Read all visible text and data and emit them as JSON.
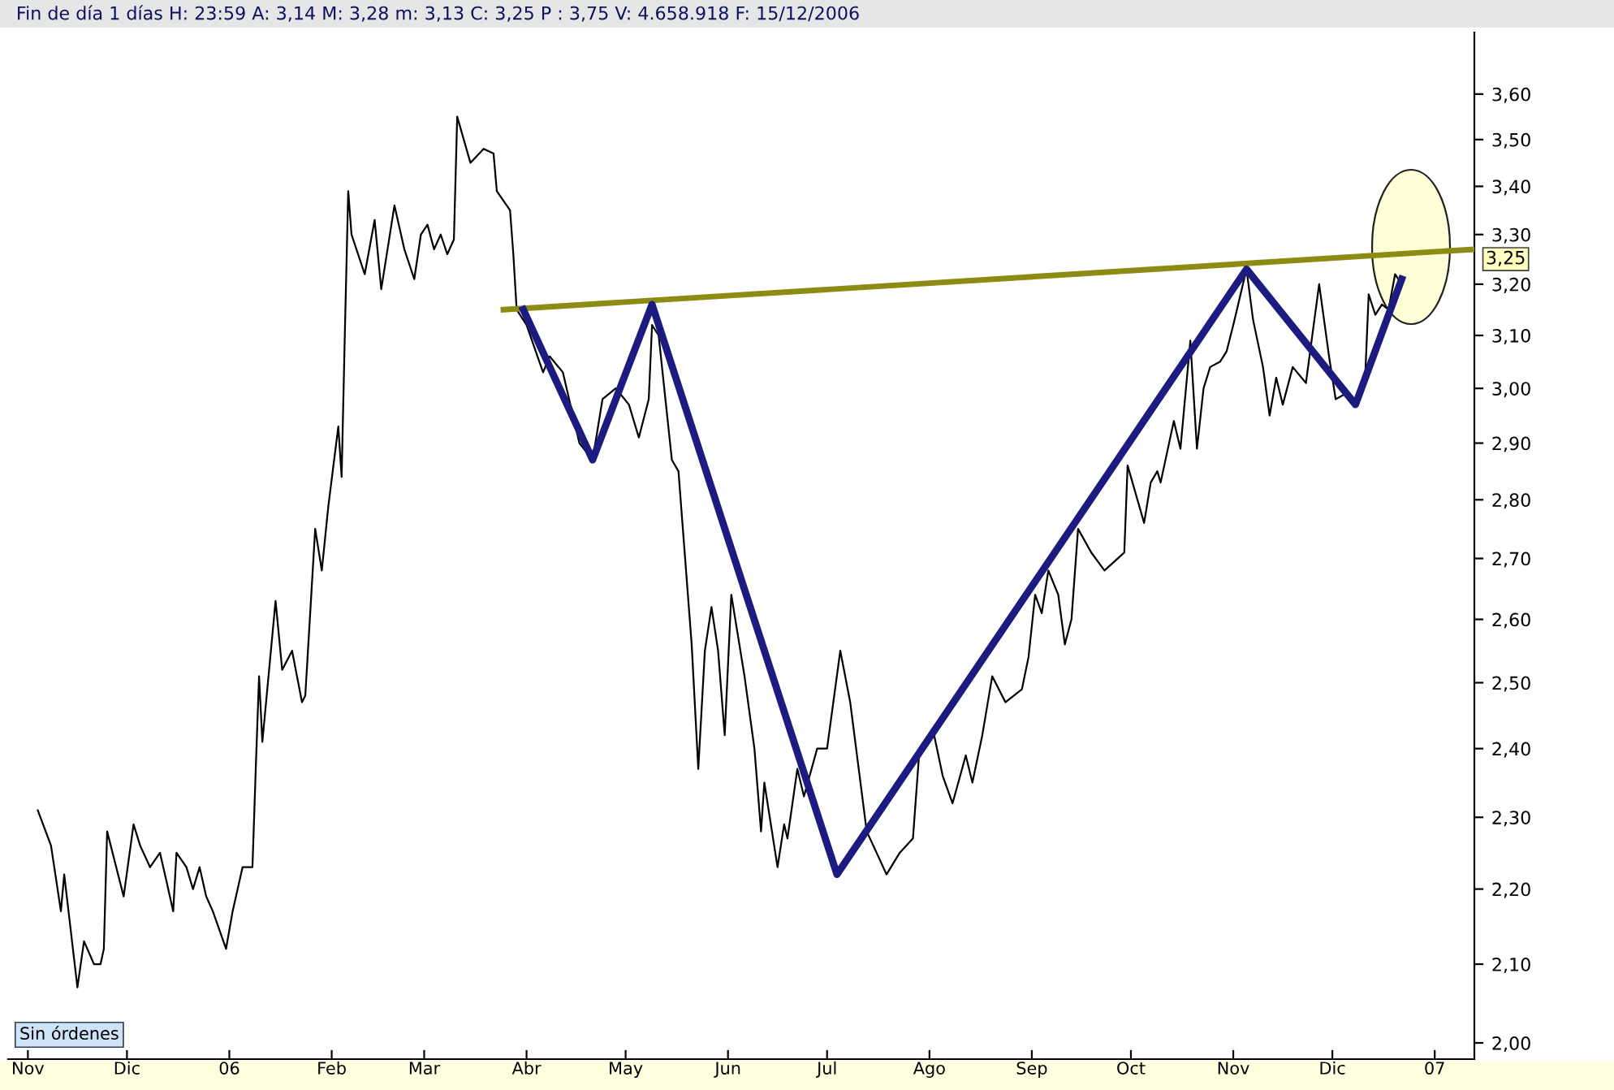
{
  "chart_data": {
    "type": "line",
    "title": "Fin de día 1 días H: 23:59 A: 3,14 M: 3,28 m: 3,13 C: 3,25 P : 3,75 V: 4.658.918 F: 15/12/2006",
    "annotations": [
      "Sin órdenes",
      {
        "text": "3,25",
        "x": "2007-01-13",
        "y": 3.25
      }
    ],
    "series": [
      {
        "color": "#000000",
        "x": [
          "2005-11-04",
          "2005-11-08",
          "2005-11-11",
          "2005-11-12",
          "2005-11-16",
          "2005-11-18",
          "2005-11-21",
          "2005-11-23",
          "2005-11-24",
          "2005-11-25",
          "2005-11-30",
          "2005-12-03",
          "2005-12-05",
          "2005-12-08",
          "2005-12-11",
          "2005-12-13",
          "2005-12-15",
          "2005-12-16",
          "2005-12-19",
          "2005-12-21",
          "2005-12-23",
          "2005-12-25",
          "2005-12-27",
          "2005-12-31",
          "2006-01-02",
          "2006-01-05",
          "2006-01-08",
          "2006-01-09",
          "2006-01-10",
          "2006-01-11",
          "2006-01-15",
          "2006-01-17",
          "2006-01-20",
          "2006-01-23",
          "2006-01-24",
          "2006-01-27",
          "2006-01-29",
          "2006-01-31",
          "2006-02-03",
          "2006-02-04",
          "2006-02-05",
          "2006-02-06",
          "2006-02-07",
          "2006-02-11",
          "2006-02-14",
          "2006-02-16",
          "2006-02-20",
          "2006-02-23",
          "2006-02-26",
          "2006-02-28",
          "2006-03-02",
          "2006-03-04",
          "2006-03-06",
          "2006-03-08",
          "2006-03-10",
          "2006-03-11",
          "2006-03-15",
          "2006-03-19",
          "2006-03-22",
          "2006-03-23",
          "2006-03-27",
          "2006-03-28",
          "2006-03-29",
          "2006-04-01",
          "2006-04-06",
          "2006-04-08",
          "2006-04-12",
          "2006-04-17",
          "2006-04-21",
          "2006-04-24",
          "2006-04-28",
          "2006-05-02",
          "2006-05-05",
          "2006-05-08",
          "2006-05-09",
          "2006-05-11",
          "2006-05-15",
          "2006-05-17",
          "2006-05-21",
          "2006-05-23",
          "2006-05-25",
          "2006-05-27",
          "2006-05-29",
          "2006-05-31",
          "2006-06-02",
          "2006-06-06",
          "2006-06-09",
          "2006-06-11",
          "2006-06-12",
          "2006-06-16",
          "2006-06-18",
          "2006-06-19",
          "2006-06-22",
          "2006-06-24",
          "2006-06-28",
          "2006-07-01",
          "2006-07-05",
          "2006-07-08",
          "2006-07-13",
          "2006-07-15",
          "2006-07-19",
          "2006-07-23",
          "2006-07-27",
          "2006-07-29",
          "2006-08-02",
          "2006-08-05",
          "2006-08-08",
          "2006-08-12",
          "2006-08-14",
          "2006-08-17",
          "2006-08-20",
          "2006-08-24",
          "2006-08-29",
          "2006-08-31",
          "2006-09-02",
          "2006-09-04",
          "2006-09-06",
          "2006-09-09",
          "2006-09-11",
          "2006-09-13",
          "2006-09-15",
          "2006-09-19",
          "2006-09-23",
          "2006-09-27",
          "2006-09-29",
          "2006-09-30",
          "2006-10-05",
          "2006-10-07",
          "2006-10-09",
          "2006-10-10",
          "2006-10-14",
          "2006-10-16",
          "2006-10-19",
          "2006-10-21",
          "2006-10-23",
          "2006-10-25",
          "2006-10-28",
          "2006-10-30",
          "2006-11-01",
          "2006-11-05",
          "2006-11-07",
          "2006-11-10",
          "2006-11-12",
          "2006-11-14",
          "2006-11-16",
          "2006-11-19",
          "2006-11-23",
          "2006-11-27",
          "2006-11-30",
          "2006-12-02",
          "2006-12-05",
          "2006-12-08",
          "2006-12-11",
          "2006-12-12",
          "2006-12-14",
          "2006-12-16",
          "2006-12-18",
          "2006-12-20",
          "2006-12-21"
        ],
        "values": [
          2.31,
          2.26,
          2.17,
          2.22,
          2.07,
          2.13,
          2.1,
          2.1,
          2.12,
          2.28,
          2.19,
          2.29,
          2.26,
          2.23,
          2.25,
          2.21,
          2.17,
          2.25,
          2.23,
          2.2,
          2.23,
          2.19,
          2.17,
          2.12,
          2.17,
          2.23,
          2.23,
          2.37,
          2.51,
          2.41,
          2.63,
          2.52,
          2.55,
          2.47,
          2.48,
          2.75,
          2.68,
          2.79,
          2.93,
          2.84,
          3.11,
          3.39,
          3.3,
          3.22,
          3.33,
          3.19,
          3.36,
          3.27,
          3.21,
          3.3,
          3.32,
          3.27,
          3.3,
          3.26,
          3.29,
          3.55,
          3.45,
          3.48,
          3.47,
          3.39,
          3.35,
          3.26,
          3.15,
          3.12,
          3.03,
          3.06,
          3.03,
          2.9,
          2.87,
          2.98,
          3.0,
          2.97,
          2.91,
          2.98,
          3.12,
          3.1,
          2.87,
          2.85,
          2.56,
          2.37,
          2.55,
          2.62,
          2.55,
          2.42,
          2.64,
          2.51,
          2.4,
          2.28,
          2.35,
          2.23,
          2.29,
          2.27,
          2.37,
          2.33,
          2.4,
          2.4,
          2.55,
          2.47,
          2.28,
          2.26,
          2.22,
          2.25,
          2.27,
          2.4,
          2.43,
          2.36,
          2.32,
          2.39,
          2.35,
          2.42,
          2.51,
          2.47,
          2.49,
          2.54,
          2.64,
          2.61,
          2.68,
          2.64,
          2.56,
          2.6,
          2.75,
          2.71,
          2.68,
          2.7,
          2.71,
          2.86,
          2.76,
          2.83,
          2.85,
          2.83,
          2.94,
          2.89,
          3.09,
          2.89,
          3.0,
          3.04,
          3.05,
          3.07,
          3.12,
          3.23,
          3.13,
          3.04,
          2.95,
          3.02,
          2.97,
          3.04,
          3.01,
          3.2,
          3.06,
          2.98,
          2.99,
          2.97,
          3.03,
          3.18,
          3.14,
          3.16,
          3.15,
          3.22,
          3.21
        ]
      },
      {
        "color": "#8c8c14",
        "x": [
          "2006-03-25",
          "2007-01-13"
        ],
        "values": [
          3.15,
          3.27
        ]
      },
      {
        "color": "#1c1c80",
        "x": [
          "2006-03-31",
          "2006-04-21",
          "2006-05-09",
          "2006-07-04",
          "2006-11-05",
          "2006-12-08",
          "2006-12-22"
        ],
        "values": [
          3.15,
          2.87,
          3.16,
          2.22,
          3.23,
          2.97,
          3.21
        ]
      }
    ],
    "log": "y",
    "xlim": [
      "2005-10-26",
      "2007-01-13"
    ],
    "xticks": [
      {
        "value": "2005-11-01",
        "label": "Nov"
      },
      {
        "value": "2005-12-01",
        "label": "Dic"
      },
      {
        "value": "2006-01-01",
        "label": "06"
      },
      {
        "value": "2006-02-01",
        "label": "Feb"
      },
      {
        "value": "2006-03-01",
        "label": "Mar"
      },
      {
        "value": "2006-04-01",
        "label": "Abr"
      },
      {
        "value": "2006-05-01",
        "label": "May"
      },
      {
        "value": "2006-06-01",
        "label": "Jun"
      },
      {
        "value": "2006-07-01",
        "label": "Jul"
      },
      {
        "value": "2006-08-01",
        "label": "Ago"
      },
      {
        "value": "2006-09-01",
        "label": "Sep"
      },
      {
        "value": "2006-10-01",
        "label": "Oct"
      },
      {
        "value": "2006-11-01",
        "label": "Nov"
      },
      {
        "value": "2006-12-01",
        "label": "Dic"
      },
      {
        "value": "2007-01-01",
        "label": "07"
      }
    ],
    "ylim": [
      1.98,
      3.74
    ],
    "yticks": [
      {
        "value": 2.0,
        "label": "2,00"
      },
      {
        "value": 2.1,
        "label": "2,10"
      },
      {
        "value": 2.2,
        "label": "2,20"
      },
      {
        "value": 2.3,
        "label": "2,30"
      },
      {
        "value": 2.4,
        "label": "2,40"
      },
      {
        "value": 2.5,
        "label": "2,50"
      },
      {
        "value": 2.6,
        "label": "2,60"
      },
      {
        "value": 2.7,
        "label": "2,70"
      },
      {
        "value": 2.8,
        "label": "2,80"
      },
      {
        "value": 2.9,
        "label": "2,90"
      },
      {
        "value": 3.0,
        "label": "3,00"
      },
      {
        "value": 3.1,
        "label": "3,10"
      },
      {
        "value": 3.2,
        "label": "3,20"
      },
      {
        "value": 3.3,
        "label": "3,30"
      },
      {
        "value": 3.4,
        "label": "3,40"
      },
      {
        "value": 3.5,
        "label": "3,50"
      },
      {
        "value": 3.6,
        "label": "3,60"
      }
    ],
    "grid": false
  }
}
